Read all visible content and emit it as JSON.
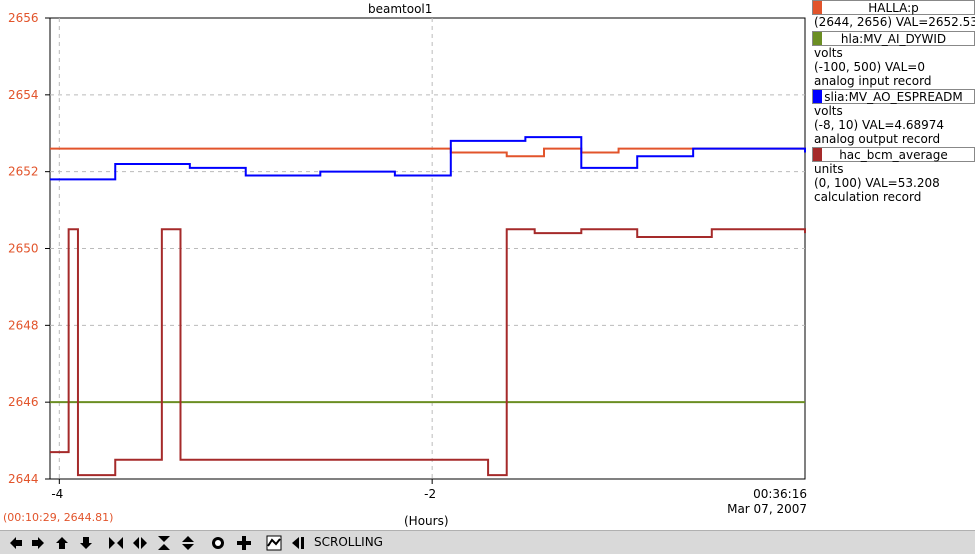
{
  "window_title": "beamtool1",
  "x_axis_label": "(Hours)",
  "timestamp": {
    "time": "00:36:16",
    "date": "Mar 07, 2007"
  },
  "cursor_readout": "(00:10:29, 2644.81)",
  "status": "SCROLLING",
  "legend": [
    {
      "name": "HALLA:p",
      "color": "#e2542b",
      "lines": [
        "(2644, 2656) VAL=2652.53"
      ]
    },
    {
      "name": "hla:MV_AI_DYWID",
      "color": "#6b8e23",
      "lines": [
        "volts",
        "(-100, 500) VAL=0",
        "analog input record"
      ]
    },
    {
      "name": "slia:MV_AO_ESPREADM",
      "color": "#0000ff",
      "lines": [
        "volts",
        "(-8, 10) VAL=4.68974",
        "analog output record"
      ]
    },
    {
      "name": "hac_bcm_average",
      "color": "#a52a2a",
      "lines": [
        "units",
        "(0, 100) VAL=53.208",
        "calculation record"
      ]
    }
  ],
  "toolbar_icons": [
    "pan-left-icon",
    "pan-right-icon",
    "pan-up-icon",
    "pan-down-icon",
    "zoom-in-x-icon",
    "zoom-out-x-icon",
    "zoom-in-y-icon",
    "zoom-out-y-icon",
    "stop-icon",
    "add-icon",
    "autoscale-icon",
    "scroll-end-icon"
  ],
  "chart_data": {
    "type": "line",
    "xlabel": "(Hours)",
    "x_ticks": [
      "-4",
      "-2"
    ],
    "y_ticks": [
      "2656",
      "2654",
      "2652",
      "2650",
      "2648",
      "2646",
      "2644"
    ],
    "xlim": [
      -4.05,
      0
    ],
    "ylim": [
      2644,
      2656
    ],
    "grid": true,
    "series": [
      {
        "name": "HALLA:p",
        "color": "#e2542b",
        "x": [
          -4.05,
          -3.8,
          -3.5,
          -3.0,
          -2.5,
          -2.0,
          -1.9,
          -1.6,
          -1.4,
          -1.2,
          -1.0,
          -0.5,
          0
        ],
        "y": [
          2652.6,
          2652.6,
          2652.6,
          2652.6,
          2652.6,
          2652.6,
          2652.5,
          2652.4,
          2652.6,
          2652.5,
          2652.6,
          2652.6,
          2652.55
        ]
      },
      {
        "name": "hla:MV_AI_DYWID",
        "color": "#6b8e23",
        "x": [
          -4.05,
          0
        ],
        "y": [
          2646.0,
          2646.0
        ]
      },
      {
        "name": "slia:MV_AO_ESPREADM",
        "color": "#0000ff",
        "x": [
          -4.05,
          -3.7,
          -3.3,
          -3.0,
          -2.6,
          -2.2,
          -1.9,
          -1.5,
          -1.2,
          -0.9,
          -0.6,
          -0.3,
          0
        ],
        "y": [
          2651.8,
          2652.2,
          2652.1,
          2651.9,
          2652.0,
          2651.9,
          2652.8,
          2652.9,
          2652.1,
          2652.4,
          2652.6,
          2652.6,
          2652.5
        ]
      },
      {
        "name": "hac_bcm_average",
        "color": "#a52a2a",
        "x": [
          -4.05,
          -3.95,
          -3.9,
          -3.7,
          -3.5,
          -3.45,
          -3.35,
          -3.0,
          -2.5,
          -2.0,
          -1.7,
          -1.6,
          -1.45,
          -1.2,
          -0.9,
          -0.5,
          0
        ],
        "y": [
          2644.7,
          2650.5,
          2644.1,
          2644.5,
          2644.5,
          2650.5,
          2644.5,
          2644.5,
          2644.5,
          2644.5,
          2644.1,
          2650.5,
          2650.4,
          2650.5,
          2650.3,
          2650.5,
          2650.4
        ]
      }
    ]
  }
}
